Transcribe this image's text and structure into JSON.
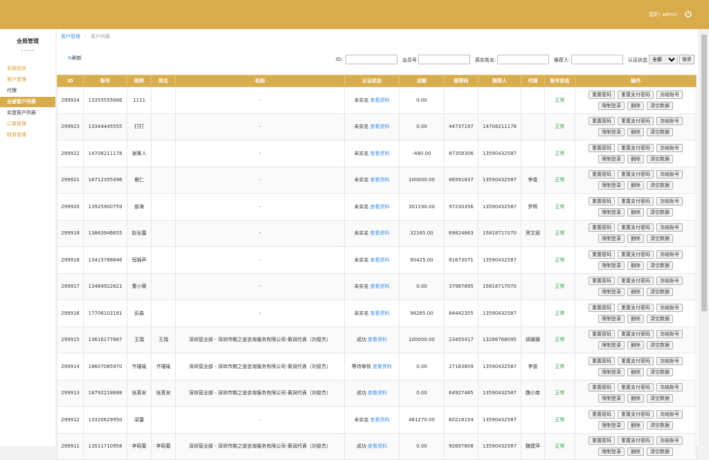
{
  "header": {
    "greeting": "您好! admin"
  },
  "sidebar": {
    "title": "全局管理",
    "menu": [
      "系统相关",
      "客户管理",
      "代理",
      "全部客户列表",
      "实盘客户列表",
      "订单管理",
      "财务管理"
    ],
    "active": 3
  },
  "breadcrumb": {
    "items": [
      "客户管理",
      "客户列表"
    ],
    "separator": "/"
  },
  "toolbar": {
    "refresh": "刷新",
    "filters": [
      "ID:",
      "会员号",
      "真实姓名:",
      "推荐人:",
      "认证状态"
    ],
    "select": "全部",
    "search": "搜索"
  },
  "table": {
    "columns": [
      "ID",
      "账号",
      "昵称",
      "姓名",
      "机构",
      "认证状态",
      "余额",
      "推荐码",
      "推荐人",
      "代理",
      "账号状态",
      "操作"
    ],
    "view_link": "查看资料",
    "actions": [
      "重置密码",
      "重置支付密码",
      "冻结账号",
      "限制登录",
      "删除",
      "清空数据"
    ],
    "rows": [
      [
        "299924",
        "13355555666",
        "1111",
        null,
        "-",
        "未实名",
        "0.00",
        null,
        null,
        null,
        "正常"
      ],
      [
        "299923",
        "13344445555",
        "打打",
        null,
        "-",
        "未实名",
        "0.00",
        "44737197",
        "14708211178",
        null,
        "正常"
      ],
      [
        "299922",
        "14708211178",
        "谢某人",
        null,
        "-",
        "未实名",
        "-480.00",
        "87358306",
        "13590432587",
        null,
        "正常"
      ],
      [
        "299921",
        "16712355496",
        "晨仁",
        null,
        "-",
        "未实名",
        "100000.00",
        "86591837",
        "13590432587",
        "李俊",
        "正常"
      ],
      [
        "299920",
        "13925900759",
        "部海",
        null,
        "-",
        "未实名",
        "301190.00",
        "97230356",
        "13590432587",
        "罗辉",
        "正常"
      ],
      [
        "299919",
        "13863946655",
        "赵化蕾",
        null,
        "-",
        "未实名",
        "32165.00",
        "69824663",
        "15818717070",
        "贺文斌",
        "正常"
      ],
      [
        "299918",
        "13415788846",
        "恒锦声",
        null,
        "-",
        "未实名",
        "90425.00",
        "81673071",
        "13590432587",
        null,
        "正常"
      ],
      [
        "299917",
        "13484922621",
        "曹小荣",
        null,
        "-",
        "未实名",
        "0.00",
        "37987895",
        "15818717070",
        null,
        "正常"
      ],
      [
        "299916",
        "17706103181",
        "彭森",
        null,
        "-",
        "未实名",
        "98285.00",
        "84442355",
        "13590432587",
        null,
        "正常"
      ],
      [
        "299915",
        "13616177667",
        "王瑞",
        "王瑞",
        "深圳营业部 - 深圳市期之道咨询服务有限公司-黄润代表（刘俊杰）",
        "成功",
        "100000.00",
        "23455417",
        "13286768095",
        "胡珊珊",
        "正常"
      ],
      [
        "299914",
        "18607085970",
        "齐珊瑜",
        "齐珊瑜",
        "深圳营业部 - 深圳市期之道咨询服务有限公司-黄润代表（刘俊杰）",
        "等待审核",
        "0.00",
        "27183809",
        "13590432587",
        "李俊",
        "正常"
      ],
      [
        "299913",
        "18792218688",
        "张真安",
        "张真安",
        "深圳营业部 - 深圳市期之道咨询服务有限公司-黄润代表（刘俊杰）",
        "成功",
        "0.00",
        "64927465",
        "13590432587",
        "魏小南",
        "正常"
      ],
      [
        "299912",
        "13320629950",
        "梁蕾",
        null,
        "-",
        "未实名",
        "481270.00",
        "60218154",
        "13590432587",
        null,
        "正常"
      ],
      [
        "299911",
        "13511710958",
        "李昭春",
        "李昭春",
        "深圳营业部 - 深圳市期之道咨询服务有限公司-黄润代表（刘俊杰）",
        "成功",
        "0.00",
        "92697808",
        "13590432587",
        "魏建萍",
        "正常"
      ]
    ]
  }
}
